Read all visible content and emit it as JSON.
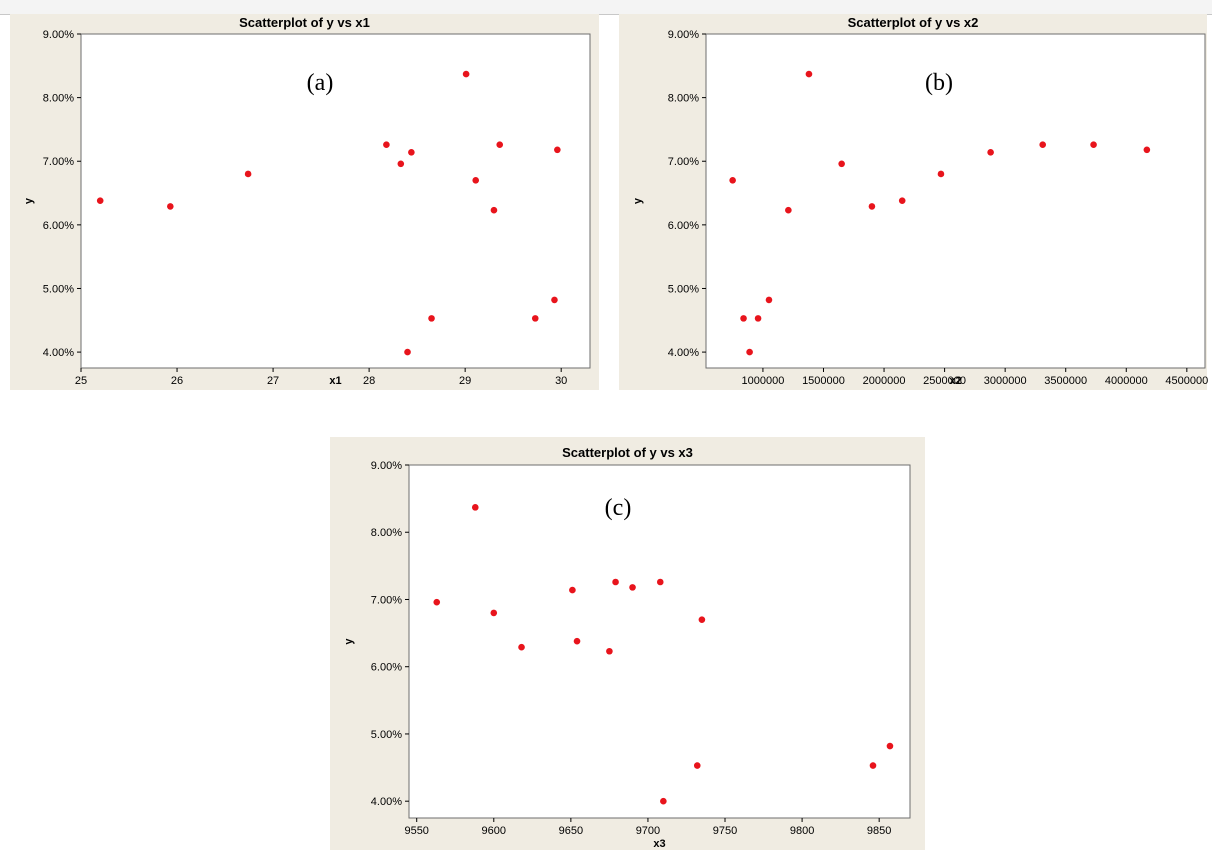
{
  "colors": {
    "marker": "#e8141c",
    "panel_bg": "#f0ece2",
    "plot_bg": "#ffffff"
  },
  "chart_data": [
    {
      "type": "scatter",
      "title": "Scatterplot of y vs x1",
      "panel_label": "(a)",
      "xlabel": "x1",
      "ylabel": "y",
      "xlim": [
        25,
        30.3
      ],
      "ylim": [
        3.75,
        9.0
      ],
      "xticks": [
        25,
        26,
        27,
        28,
        29,
        30
      ],
      "xtick_labels": [
        "25",
        "26",
        "27",
        "28",
        "29",
        "30"
      ],
      "yticks": [
        4,
        5,
        6,
        7,
        8,
        9
      ],
      "ytick_labels": [
        "4.00%",
        "5.00%",
        "6.00%",
        "7.00%",
        "8.00%",
        "9.00%"
      ],
      "grid": false,
      "x": [
        25.2,
        25.93,
        26.74,
        28.18,
        28.33,
        28.4,
        28.44,
        28.65,
        29.01,
        29.11,
        29.3,
        29.36,
        29.73,
        29.93,
        29.96
      ],
      "y": [
        6.38,
        6.29,
        6.8,
        7.26,
        6.96,
        4.0,
        7.14,
        4.53,
        8.37,
        6.7,
        6.23,
        7.26,
        4.53,
        4.82,
        7.18
      ]
    },
    {
      "type": "scatter",
      "title": "Scatterplot of y vs x2",
      "panel_label": "(b)",
      "xlabel": "x2",
      "ylabel": "y",
      "xlim": [
        530000,
        4650000
      ],
      "ylim": [
        3.75,
        9.0
      ],
      "xticks": [
        1000000,
        1500000,
        2000000,
        2500000,
        3000000,
        3500000,
        4000000,
        4500000
      ],
      "xtick_labels": [
        "1000000",
        "1500000",
        "2000000",
        "2500000",
        "3000000",
        "3500000",
        "4000000",
        "4500000"
      ],
      "yticks": [
        4,
        5,
        6,
        7,
        8,
        9
      ],
      "ytick_labels": [
        "4.00%",
        "5.00%",
        "6.00%",
        "7.00%",
        "8.00%",
        "9.00%"
      ],
      "grid": false,
      "x": [
        750000,
        840000,
        890000,
        960000,
        1050000,
        1210000,
        1380000,
        1650000,
        1900000,
        2150000,
        2470000,
        2880000,
        3310000,
        3730000,
        4170000
      ],
      "y": [
        6.7,
        4.53,
        4.0,
        4.53,
        4.82,
        6.23,
        8.37,
        6.96,
        6.29,
        6.38,
        6.8,
        7.14,
        7.26,
        7.26,
        7.18
      ]
    },
    {
      "type": "scatter",
      "title": "Scatterplot of y vs x3",
      "panel_label": "(c)",
      "xlabel": "x3",
      "ylabel": "y",
      "xlim": [
        9545,
        9870
      ],
      "ylim": [
        3.75,
        9.0
      ],
      "xticks": [
        9550,
        9600,
        9650,
        9700,
        9750,
        9800,
        9850
      ],
      "xtick_labels": [
        "9550",
        "9600",
        "9650",
        "9700",
        "9750",
        "9800",
        "9850"
      ],
      "yticks": [
        4,
        5,
        6,
        7,
        8,
        9
      ],
      "ytick_labels": [
        "4.00%",
        "5.00%",
        "6.00%",
        "7.00%",
        "8.00%",
        "9.00%"
      ],
      "grid": false,
      "x": [
        9563,
        9588,
        9600,
        9618,
        9651,
        9654,
        9675,
        9679,
        9690,
        9708,
        9710,
        9732,
        9735,
        9846,
        9857
      ],
      "y": [
        6.96,
        8.37,
        6.8,
        6.29,
        7.14,
        6.38,
        6.23,
        7.26,
        7.18,
        7.26,
        4.0,
        4.53,
        6.7,
        4.53,
        4.82
      ]
    }
  ]
}
